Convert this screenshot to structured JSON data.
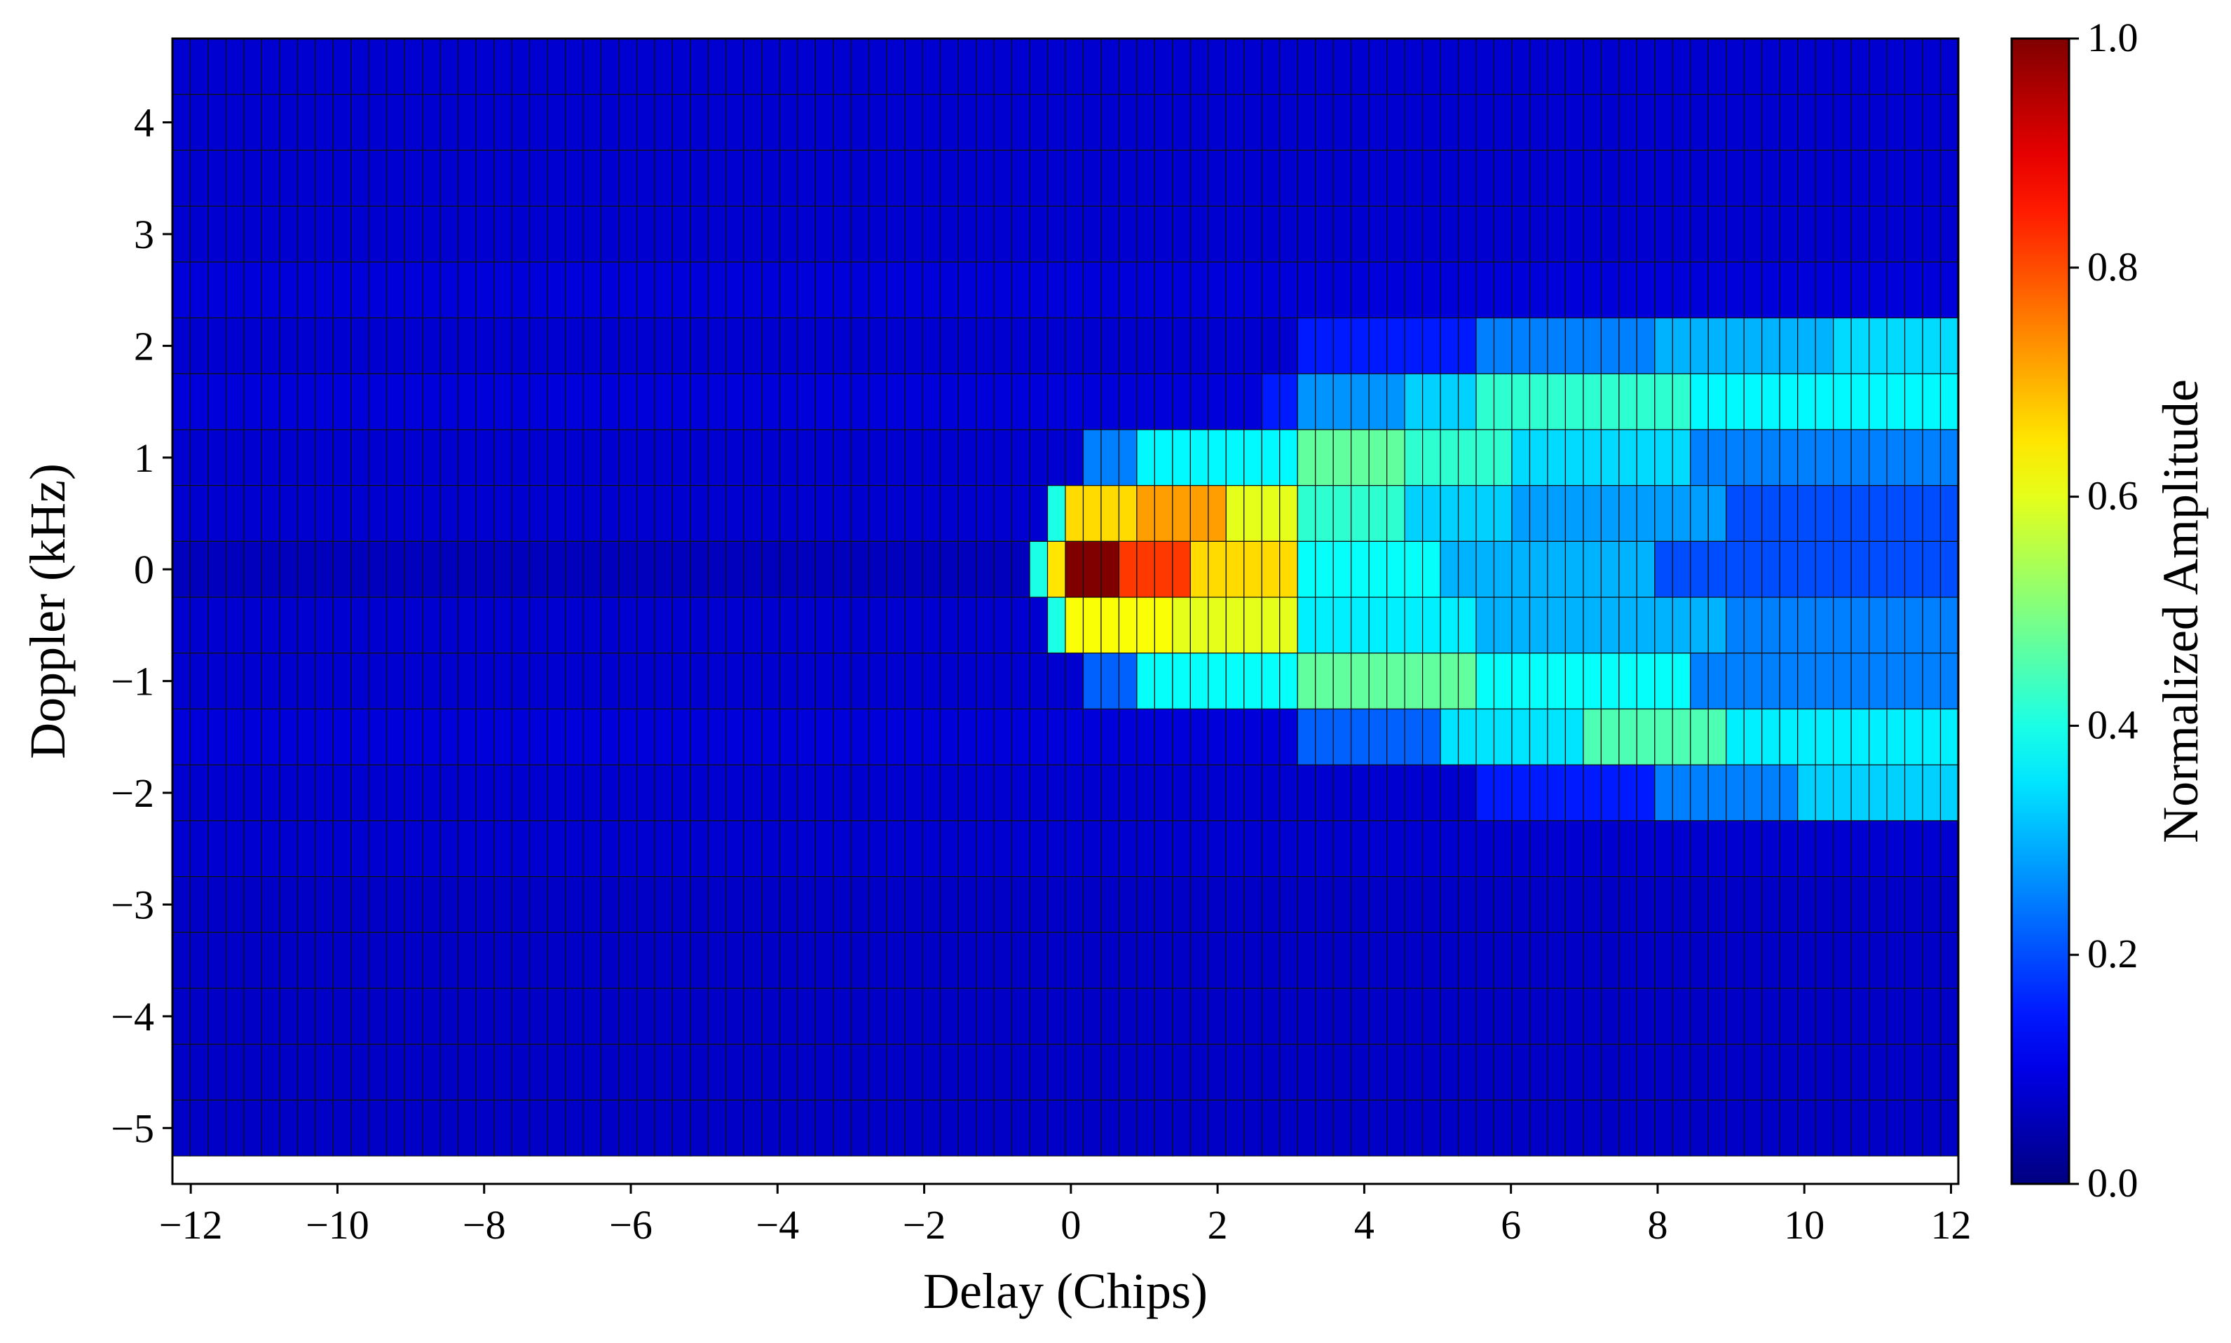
{
  "chart_data": {
    "type": "heatmap",
    "title": "",
    "xlabel": "Delay (Chips)",
    "ylabel": "Doppler (kHz)",
    "colorbar_label": "Normalized Amplitude",
    "colormap": "jet",
    "xlim": [
      -12.25,
      12.1
    ],
    "ylim": [
      -5.5,
      4.75
    ],
    "clim": [
      0.0,
      1.0
    ],
    "x_ticks": [
      -12,
      -10,
      -8,
      -6,
      -4,
      -2,
      0,
      2,
      4,
      6,
      8,
      10,
      12
    ],
    "x_tick_labels": [
      "−12",
      "−10",
      "−8",
      "−6",
      "−4",
      "−2",
      "0",
      "2",
      "4",
      "6",
      "8",
      "10",
      "12"
    ],
    "y_ticks": [
      -5,
      -4,
      -3,
      -2,
      -1,
      0,
      1,
      2,
      3,
      4
    ],
    "y_tick_labels": [
      "−5",
      "−4",
      "−3",
      "−2",
      "−1",
      "0",
      "1",
      "2",
      "3",
      "4"
    ],
    "colorbar_ticks": [
      0.0,
      0.2,
      0.4,
      0.6,
      0.8,
      1.0
    ],
    "colorbar_tick_labels": [
      "0.0",
      "0.2",
      "0.4",
      "0.6",
      "0.8",
      "1.0"
    ],
    "delay_bins": {
      "start": -12.25,
      "end": 12.1,
      "count": 100
    },
    "doppler_bins": [
      {
        "center": 4.5,
        "values_by_delay": [
          {
            "from": -12.25,
            "to": 12.1,
            "value": 0.08
          }
        ]
      },
      {
        "center": 4.0,
        "values_by_delay": [
          {
            "from": -12.25,
            "to": 12.1,
            "value": 0.08
          }
        ]
      },
      {
        "center": 3.5,
        "values_by_delay": [
          {
            "from": -12.25,
            "to": 12.1,
            "value": 0.08
          }
        ]
      },
      {
        "center": 3.0,
        "values_by_delay": [
          {
            "from": -12.25,
            "to": 12.1,
            "value": 0.08
          }
        ]
      },
      {
        "center": 2.5,
        "values_by_delay": [
          {
            "from": -12.25,
            "to": 12.1,
            "value": 0.09
          }
        ]
      },
      {
        "center": 2.0,
        "values_by_delay": [
          {
            "from": -12.25,
            "to": 3.0,
            "value": 0.08
          },
          {
            "from": 3.0,
            "to": 5.5,
            "value": 0.15
          },
          {
            "from": 5.5,
            "to": 8.0,
            "value": 0.25
          },
          {
            "from": 8.0,
            "to": 10.5,
            "value": 0.3
          },
          {
            "from": 10.5,
            "to": 12.1,
            "value": 0.34
          }
        ]
      },
      {
        "center": 1.5,
        "values_by_delay": [
          {
            "from": -12.25,
            "to": 2.5,
            "value": 0.09
          },
          {
            "from": 2.5,
            "to": 3.0,
            "value": 0.15
          },
          {
            "from": 3.0,
            "to": 4.5,
            "value": 0.27
          },
          {
            "from": 4.5,
            "to": 5.5,
            "value": 0.33
          },
          {
            "from": 5.5,
            "to": 8.5,
            "value": 0.42
          },
          {
            "from": 8.5,
            "to": 12.1,
            "value": 0.37
          }
        ]
      },
      {
        "center": 1.0,
        "values_by_delay": [
          {
            "from": -12.25,
            "to": 0.25,
            "value": 0.08
          },
          {
            "from": 0.25,
            "to": 1.0,
            "value": 0.25
          },
          {
            "from": 1.0,
            "to": 3.0,
            "value": 0.37
          },
          {
            "from": 3.0,
            "to": 4.5,
            "value": 0.47
          },
          {
            "from": 4.5,
            "to": 6.0,
            "value": 0.42
          },
          {
            "from": 6.0,
            "to": 8.5,
            "value": 0.34
          },
          {
            "from": 8.5,
            "to": 12.1,
            "value": 0.25
          }
        ]
      },
      {
        "center": 0.5,
        "values_by_delay": [
          {
            "from": -12.25,
            "to": -0.4,
            "value": 0.08
          },
          {
            "from": -0.4,
            "to": 0.0,
            "value": 0.4
          },
          {
            "from": 0.0,
            "to": 0.9,
            "value": 0.66
          },
          {
            "from": 0.9,
            "to": 2.0,
            "value": 0.72
          },
          {
            "from": 2.0,
            "to": 3.0,
            "value": 0.6
          },
          {
            "from": 3.0,
            "to": 4.5,
            "value": 0.42
          },
          {
            "from": 4.5,
            "to": 6.0,
            "value": 0.33
          },
          {
            "from": 6.0,
            "to": 9.0,
            "value": 0.28
          },
          {
            "from": 9.0,
            "to": 12.1,
            "value": 0.2
          }
        ]
      },
      {
        "center": 0.0,
        "values_by_delay": [
          {
            "from": -12.25,
            "to": -0.6,
            "value": 0.06
          },
          {
            "from": -0.6,
            "to": -0.2,
            "value": 0.4
          },
          {
            "from": -0.2,
            "to": 0.0,
            "value": 0.65
          },
          {
            "from": 0.0,
            "to": 0.7,
            "value": 1.0
          },
          {
            "from": 0.7,
            "to": 1.6,
            "value": 0.82
          },
          {
            "from": 1.6,
            "to": 3.0,
            "value": 0.66
          },
          {
            "from": 3.0,
            "to": 5.0,
            "value": 0.38
          },
          {
            "from": 5.0,
            "to": 8.0,
            "value": 0.3
          },
          {
            "from": 8.0,
            "to": 12.1,
            "value": 0.2
          }
        ]
      },
      {
        "center": -0.5,
        "values_by_delay": [
          {
            "from": -12.25,
            "to": -0.4,
            "value": 0.08
          },
          {
            "from": -0.4,
            "to": 0.0,
            "value": 0.4
          },
          {
            "from": 0.0,
            "to": 1.5,
            "value": 0.62
          },
          {
            "from": 1.5,
            "to": 3.0,
            "value": 0.6
          },
          {
            "from": 3.0,
            "to": 5.5,
            "value": 0.36
          },
          {
            "from": 5.5,
            "to": 9.0,
            "value": 0.3
          },
          {
            "from": 9.0,
            "to": 12.1,
            "value": 0.25
          }
        ]
      },
      {
        "center": -1.0,
        "values_by_delay": [
          {
            "from": -12.25,
            "to": 0.25,
            "value": 0.08
          },
          {
            "from": 0.25,
            "to": 1.0,
            "value": 0.22
          },
          {
            "from": 1.0,
            "to": 3.0,
            "value": 0.38
          },
          {
            "from": 3.0,
            "to": 5.5,
            "value": 0.47
          },
          {
            "from": 5.5,
            "to": 8.5,
            "value": 0.38
          },
          {
            "from": 8.5,
            "to": 12.1,
            "value": 0.25
          }
        ]
      },
      {
        "center": -1.5,
        "values_by_delay": [
          {
            "from": -12.25,
            "to": 3.0,
            "value": 0.09
          },
          {
            "from": 3.0,
            "to": 5.0,
            "value": 0.22
          },
          {
            "from": 5.0,
            "to": 7.0,
            "value": 0.35
          },
          {
            "from": 7.0,
            "to": 9.0,
            "value": 0.45
          },
          {
            "from": 9.0,
            "to": 12.1,
            "value": 0.36
          }
        ]
      },
      {
        "center": -2.0,
        "values_by_delay": [
          {
            "from": -12.25,
            "to": 5.5,
            "value": 0.08
          },
          {
            "from": 5.5,
            "to": 8.0,
            "value": 0.15
          },
          {
            "from": 8.0,
            "to": 10.0,
            "value": 0.25
          },
          {
            "from": 10.0,
            "to": 12.1,
            "value": 0.33
          }
        ]
      },
      {
        "center": -2.5,
        "values_by_delay": [
          {
            "from": -12.25,
            "to": 12.1,
            "value": 0.08
          }
        ]
      },
      {
        "center": -3.0,
        "values_by_delay": [
          {
            "from": -12.25,
            "to": 12.1,
            "value": 0.07
          }
        ]
      },
      {
        "center": -3.5,
        "values_by_delay": [
          {
            "from": -12.25,
            "to": 12.1,
            "value": 0.07
          }
        ]
      },
      {
        "center": -4.0,
        "values_by_delay": [
          {
            "from": -12.25,
            "to": 12.1,
            "value": 0.07
          }
        ]
      },
      {
        "center": -4.5,
        "values_by_delay": [
          {
            "from": -12.25,
            "to": 12.1,
            "value": 0.07
          }
        ]
      },
      {
        "center": -5.0,
        "values_by_delay": [
          {
            "from": -12.25,
            "to": 12.1,
            "value": 0.07
          }
        ]
      }
    ]
  }
}
